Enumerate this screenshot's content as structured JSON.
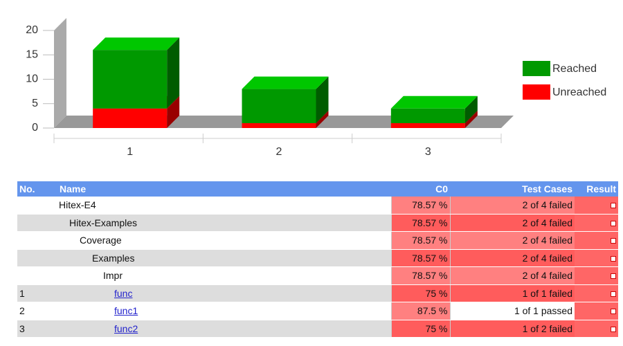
{
  "chart_data": {
    "type": "bar",
    "stacked": true,
    "categories": [
      "1",
      "2",
      "3"
    ],
    "series": [
      {
        "name": "Unreached",
        "color": "#ff0000",
        "values": [
          4,
          1,
          1
        ]
      },
      {
        "name": "Reached",
        "color": "#009900",
        "values": [
          12,
          7,
          3
        ]
      }
    ],
    "ylim": [
      0,
      20
    ],
    "yticks": [
      0,
      5,
      10,
      15,
      20
    ],
    "legend": "right"
  },
  "table": {
    "headers": [
      "No.",
      "Name",
      "C0",
      "Test Cases",
      "Result"
    ],
    "rows": [
      {
        "name": "Hitex-E4",
        "c0": "78.57 %",
        "tests": "2 of 4 failed"
      },
      {
        "name": "Hitex-Examples",
        "c0": "78.57 %",
        "tests": "2 of 4 failed"
      },
      {
        "name": "Coverage",
        "c0": "78.57 %",
        "tests": "2 of 4 failed"
      },
      {
        "name": "Examples",
        "c0": "78.57 %",
        "tests": "2 of 4 failed"
      },
      {
        "name": "Impr",
        "c0": "78.57 %",
        "tests": "2 of 4 failed"
      },
      {
        "no": "1",
        "name": "func",
        "c0": "75 %",
        "tests": "1 of 1 failed"
      },
      {
        "no": "2",
        "name": "func1",
        "c0": "87.5 %",
        "tests": "1 of 1 passed"
      },
      {
        "no": "3",
        "name": "func2",
        "c0": "75 %",
        "tests": "1 of 2 failed"
      }
    ]
  }
}
